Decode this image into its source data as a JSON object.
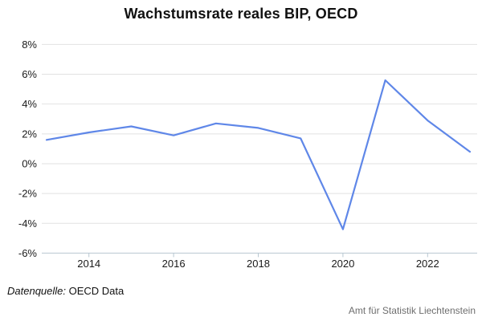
{
  "title": "Wachstumsrate reales BIP, OECD",
  "footer": {
    "source_label": "Datenquelle:",
    "source_value": "OECD Data",
    "attribution": "Amt für Statistik Liechtenstein"
  },
  "colors": {
    "line": "#5f87e8",
    "grid": "#e2e2e2",
    "axis": "#b8c7d1",
    "tick_label": "#1a1a1a",
    "title": "#111111",
    "attribution": "#6e6e6e",
    "background": "#ffffff"
  },
  "chart_data": {
    "type": "line",
    "title": "Wachstumsrate reales BIP, OECD",
    "x": [
      2013,
      2014,
      2015,
      2016,
      2017,
      2018,
      2019,
      2020,
      2021,
      2022,
      2023
    ],
    "values": [
      1.6,
      2.1,
      2.5,
      1.9,
      2.7,
      2.4,
      1.7,
      -4.4,
      5.6,
      2.9,
      0.8
    ],
    "series_name": "Wachstumsrate reales BIP",
    "xlabel": "",
    "ylabel": "",
    "xlim": [
      2013,
      2023
    ],
    "ylim": [
      -6,
      8
    ],
    "x_ticks": [
      2014,
      2016,
      2018,
      2020,
      2022
    ],
    "y_ticks": [
      8,
      6,
      4,
      2,
      0,
      -2,
      -4,
      -6
    ],
    "y_tick_suffix": "%",
    "grid": true,
    "legend": false
  }
}
